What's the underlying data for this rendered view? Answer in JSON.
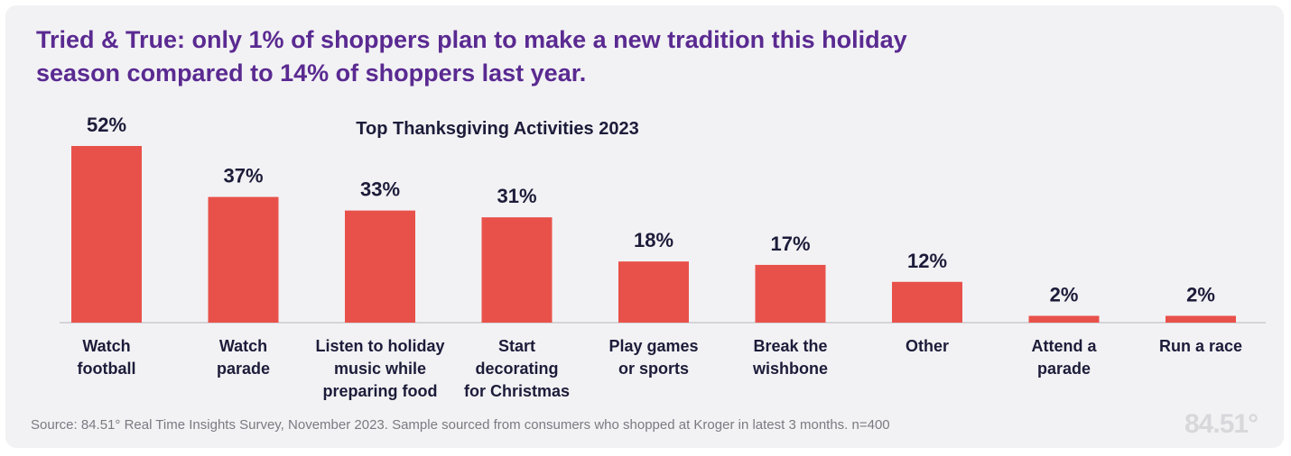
{
  "headline": {
    "line1": "Tried & True: only 1% of shoppers plan to make a new tradition this holiday",
    "line2": "season compared to 14% of shoppers last year."
  },
  "chart_data": {
    "type": "bar",
    "title": "Top Thanksgiving Activities 2023",
    "categories": [
      [
        "Watch",
        "football"
      ],
      [
        "Watch",
        "parade"
      ],
      [
        "Listen to holiday",
        "music while",
        "preparing food"
      ],
      [
        "Start",
        "decorating",
        "for Christmas"
      ],
      [
        "Play games",
        "or sports"
      ],
      [
        "Break the",
        "wishbone"
      ],
      [
        "Other"
      ],
      [
        "Attend a",
        "parade"
      ],
      [
        "Run a race"
      ]
    ],
    "values": [
      52,
      37,
      33,
      31,
      18,
      17,
      12,
      2,
      2
    ],
    "value_labels": [
      "52%",
      "37%",
      "33%",
      "31%",
      "18%",
      "17%",
      "12%",
      "2%",
      "2%"
    ],
    "unit": "%",
    "xlabel": "",
    "ylabel": "",
    "ylim": [
      0,
      52
    ],
    "grid": false,
    "colors": {
      "bar": "#e8514a",
      "text": "#1c1c3a",
      "baseline": "#c9c9cf"
    }
  },
  "source": "Source:  84.51° Real Time Insights Survey, November 2023. Sample sourced from consumers who shopped at Kroger in latest 3 months. n=400",
  "logo": "84.51°"
}
